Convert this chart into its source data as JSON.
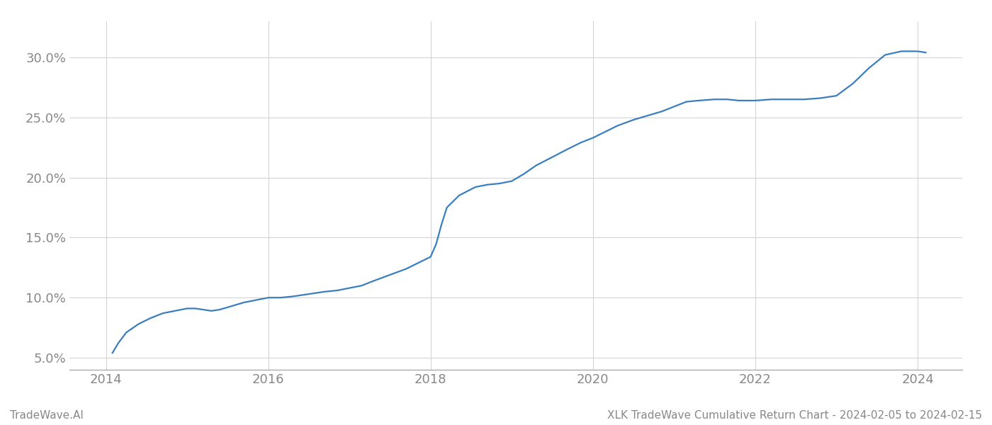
{
  "title": "XLK TradeWave Cumulative Return Chart - 2024-02-05 to 2024-02-15",
  "watermark": "TradeWave.AI",
  "line_color": "#3a7ebf",
  "background_color": "#ffffff",
  "grid_color": "#d0d0d0",
  "x_years": [
    2014,
    2016,
    2018,
    2020,
    2022,
    2024
  ],
  "ylim": [
    0.04,
    0.33
  ],
  "yticks": [
    0.05,
    0.1,
    0.15,
    0.2,
    0.25,
    0.3
  ],
  "data_x": [
    2014.08,
    2014.15,
    2014.25,
    2014.4,
    2014.55,
    2014.7,
    2014.85,
    2015.0,
    2015.1,
    2015.2,
    2015.3,
    2015.4,
    2015.55,
    2015.7,
    2015.85,
    2016.0,
    2016.15,
    2016.3,
    2016.5,
    2016.7,
    2016.85,
    2017.0,
    2017.15,
    2017.3,
    2017.5,
    2017.7,
    2017.85,
    2018.0,
    2018.07,
    2018.13,
    2018.2,
    2018.35,
    2018.55,
    2018.7,
    2018.85,
    2019.0,
    2019.15,
    2019.3,
    2019.5,
    2019.7,
    2019.85,
    2020.0,
    2020.15,
    2020.3,
    2020.5,
    2020.7,
    2020.85,
    2021.0,
    2021.15,
    2021.3,
    2021.5,
    2021.65,
    2021.8,
    2022.0,
    2022.2,
    2022.4,
    2022.6,
    2022.8,
    2023.0,
    2023.2,
    2023.4,
    2023.6,
    2023.8,
    2024.0,
    2024.1
  ],
  "data_y": [
    0.054,
    0.062,
    0.071,
    0.078,
    0.083,
    0.087,
    0.089,
    0.091,
    0.091,
    0.09,
    0.089,
    0.09,
    0.093,
    0.096,
    0.098,
    0.1,
    0.1,
    0.101,
    0.103,
    0.105,
    0.106,
    0.108,
    0.11,
    0.114,
    0.119,
    0.124,
    0.129,
    0.134,
    0.145,
    0.16,
    0.175,
    0.185,
    0.192,
    0.194,
    0.195,
    0.197,
    0.203,
    0.21,
    0.217,
    0.224,
    0.229,
    0.233,
    0.238,
    0.243,
    0.248,
    0.252,
    0.255,
    0.259,
    0.263,
    0.264,
    0.265,
    0.265,
    0.264,
    0.264,
    0.265,
    0.265,
    0.265,
    0.266,
    0.268,
    0.278,
    0.291,
    0.302,
    0.305,
    0.305,
    0.304
  ],
  "title_fontsize": 11,
  "watermark_fontsize": 11,
  "tick_fontsize": 13,
  "line_width": 1.6
}
